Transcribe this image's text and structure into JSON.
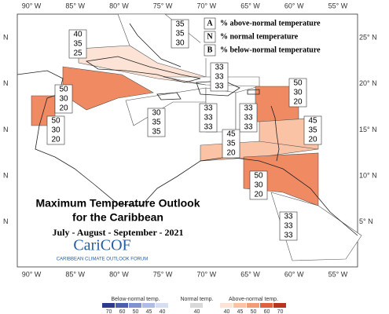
{
  "title": "Maximum Temperature Outlook",
  "subtitle": "for the Caribbean",
  "period": "July - August - September - 2021",
  "logo": {
    "name": "CariCOF",
    "tagline": "CARIBBEAN CLIMATE OUTLOOK FORUM"
  },
  "key": [
    {
      "letter": "A",
      "text": "% above-normal temperature"
    },
    {
      "letter": "N",
      "text": "% normal temperature"
    },
    {
      "letter": "B",
      "text": "% below-normal temperature"
    }
  ],
  "longitudes": [
    "90° W",
    "85° W",
    "80° W",
    "75° W",
    "70° W",
    "65° W",
    "60° W",
    "55° W"
  ],
  "latitudes": [
    "25° N",
    "20° N",
    "15° N",
    "10° N",
    "5° N"
  ],
  "left_lat_marks": [
    "N",
    "N",
    "N",
    "N",
    "N"
  ],
  "regions": [
    {
      "values": [
        40,
        35,
        25
      ],
      "color": "#fde3d6"
    },
    {
      "values": [
        35,
        35,
        30
      ],
      "color": "#ffffff"
    },
    {
      "values": [
        33,
        33,
        33
      ],
      "color": "#ffffff"
    },
    {
      "values": [
        50,
        30,
        20
      ],
      "color": "#ef8a62"
    },
    {
      "values": [
        50,
        30,
        20
      ],
      "color": "#ef8a62"
    },
    {
      "values": [
        30,
        35,
        35
      ],
      "color": "#ffffff"
    },
    {
      "values": [
        33,
        33,
        33
      ],
      "color": "#ffffff"
    },
    {
      "values": [
        33,
        33,
        33
      ],
      "color": "#ffffff"
    },
    {
      "values": [
        50,
        30,
        20
      ],
      "color": "#ef8a62"
    },
    {
      "values": [
        45,
        35,
        20
      ],
      "color": "#fbc3a6"
    },
    {
      "values": [
        45,
        35,
        20
      ],
      "color": "#fbc3a6"
    },
    {
      "values": [
        50,
        30,
        20
      ],
      "color": "#ef8a62"
    },
    {
      "values": [
        33,
        33,
        33
      ],
      "color": "#ffffff"
    }
  ],
  "colorbar": {
    "below": {
      "label": "Below-normal temp.",
      "ticks": [
        70,
        60,
        50,
        45,
        40
      ],
      "colors": [
        "#2b3a8c",
        "#4a5fb0",
        "#7f93cf",
        "#aebde4",
        "#d6def2"
      ]
    },
    "normal": {
      "label": "Normal temp.",
      "ticks": [
        40
      ],
      "colors": [
        "#d9d9d9"
      ]
    },
    "above": {
      "label": "Above-normal temp.",
      "ticks": [
        40,
        45,
        50,
        60,
        70
      ],
      "colors": [
        "#fde3d6",
        "#fbc3a6",
        "#f49a77",
        "#e0613f",
        "#b8341f"
      ]
    }
  }
}
